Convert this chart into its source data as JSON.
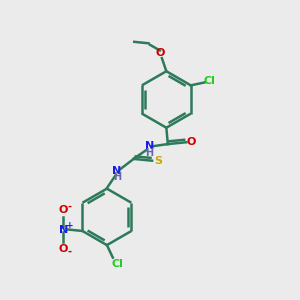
{
  "bg_color": "#ebebeb",
  "bond_color": "#2d7a5a",
  "bond_width": 1.8,
  "atom_colors": {
    "Cl": "#22cc22",
    "O": "#cc0000",
    "N": "#1a1aee",
    "S": "#ccaa00",
    "H": "#6666aa",
    "C": "#2d7a5a"
  },
  "lw": 1.8
}
